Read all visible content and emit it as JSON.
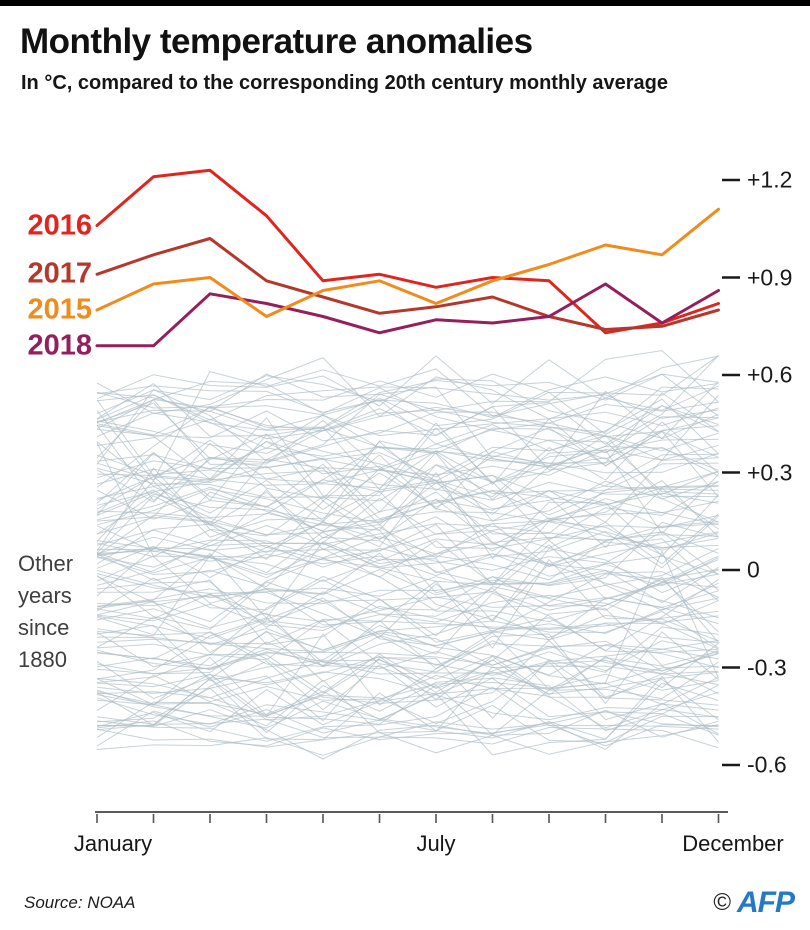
{
  "header": {
    "title": "Monthly temperature anomalies",
    "subtitle": "In °C, compared to the corresponding 20th century monthly average"
  },
  "footer": {
    "source": "Source: NOAA",
    "copyright": "©",
    "agency": "AFP"
  },
  "chart_data": {
    "type": "line",
    "unit": "°C",
    "x": [
      "January",
      "February",
      "March",
      "April",
      "May",
      "June",
      "July",
      "August",
      "September",
      "October",
      "November",
      "December"
    ],
    "x_axis_labels_shown": [
      "January",
      "July",
      "December"
    ],
    "y_ticks": [
      {
        "label": "+1.2",
        "value": 1.2
      },
      {
        "label": "+0.9",
        "value": 0.9
      },
      {
        "label": "+0.6",
        "value": 0.6
      },
      {
        "label": "+0.3",
        "value": 0.3
      },
      {
        "label": "0",
        "value": 0.0
      },
      {
        "label": "-0.3",
        "value": -0.3
      },
      {
        "label": "-0.6",
        "value": -0.6
      }
    ],
    "ylim": [
      -0.74,
      1.32
    ],
    "grid": false,
    "legend_position": "left-of-line-start",
    "series": [
      {
        "name": "2016",
        "color": "#e0251e",
        "values": [
          1.06,
          1.21,
          1.23,
          1.09,
          0.89,
          0.91,
          0.87,
          0.9,
          0.89,
          0.73,
          0.76,
          0.82
        ]
      },
      {
        "name": "2017",
        "color": "#b4382b",
        "values": [
          0.91,
          0.97,
          1.02,
          0.89,
          0.84,
          0.79,
          0.81,
          0.84,
          0.78,
          0.74,
          0.75,
          0.8
        ]
      },
      {
        "name": "2015",
        "color": "#f08b1d",
        "values": [
          0.8,
          0.88,
          0.9,
          0.78,
          0.86,
          0.89,
          0.82,
          0.89,
          0.94,
          1.0,
          0.97,
          1.11
        ]
      },
      {
        "name": "2018",
        "color": "#941f5c",
        "values": [
          0.69,
          0.69,
          0.85,
          0.82,
          0.78,
          0.73,
          0.77,
          0.76,
          0.78,
          0.88,
          0.76,
          0.86
        ]
      }
    ],
    "other_years": {
      "label": "Other\nyears\nsince\n1880",
      "description": "Background lines: all other years since 1880",
      "count": 130,
      "seed": 11,
      "base_range": [
        -0.5,
        0.56
      ],
      "amp_range": [
        0.04,
        0.15
      ],
      "value_clamp": [
        -0.68,
        0.87
      ],
      "color": "#aebdc6"
    },
    "axis_color": "#5a5a5a",
    "tick_dash_color": "#1a1a1a"
  }
}
